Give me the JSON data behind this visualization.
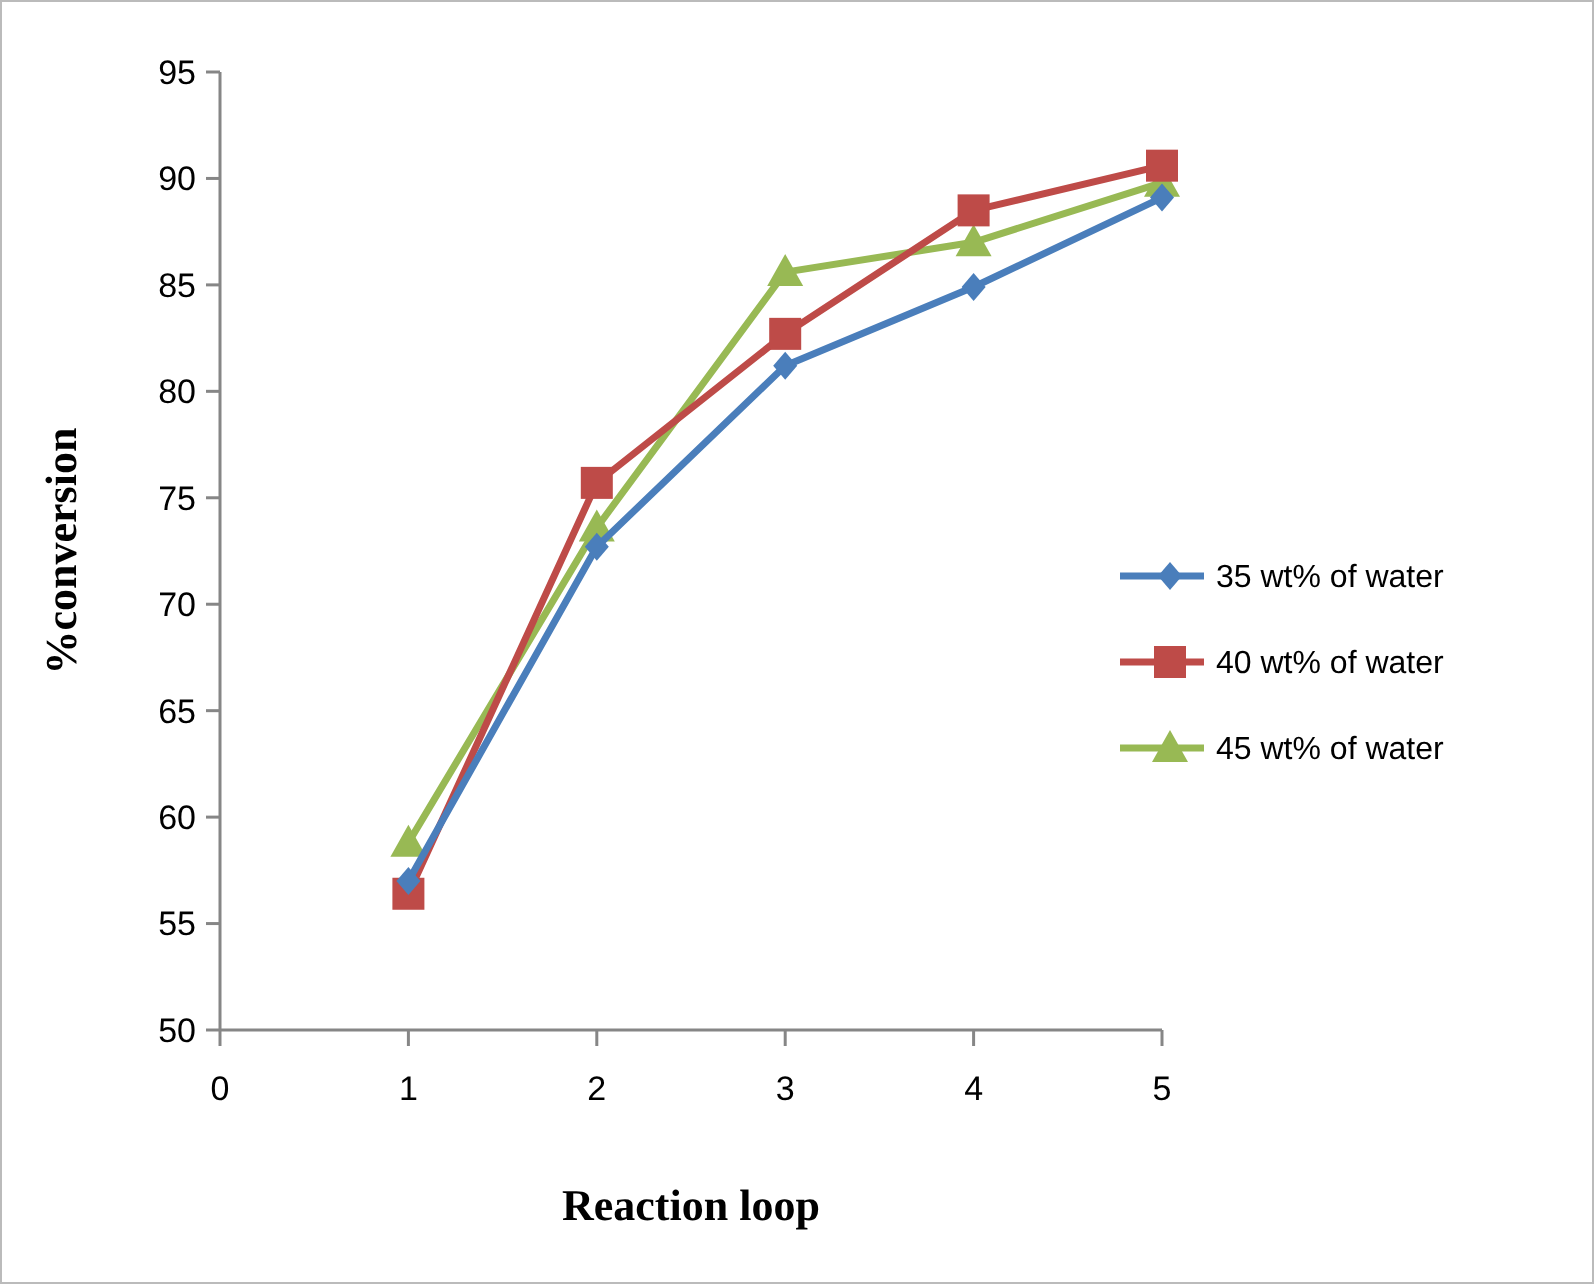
{
  "chart_data": {
    "type": "line",
    "xlabel": "Reaction loop",
    "ylabel": "%conversion",
    "x": [
      1,
      2,
      3,
      4,
      5
    ],
    "xlim": [
      0,
      5
    ],
    "xticks": [
      0,
      1,
      2,
      3,
      4,
      5
    ],
    "ylim": [
      50,
      95
    ],
    "yticks": [
      50,
      55,
      60,
      65,
      70,
      75,
      80,
      85,
      90,
      95
    ],
    "grid": false,
    "legend": "right",
    "series": [
      {
        "name": "35 wt% of water",
        "color": "#4a7ebb",
        "marker": "diamond",
        "values": [
          57,
          72.7,
          81.2,
          84.9,
          89.1
        ]
      },
      {
        "name": "40 wt% of water",
        "color": "#be4b48",
        "marker": "square",
        "values": [
          56.4,
          75.7,
          82.7,
          88.5,
          90.6
        ]
      },
      {
        "name": "45 wt% of water",
        "color": "#98b954",
        "marker": "triangle",
        "values": [
          58.8,
          73.6,
          85.6,
          87.0,
          89.8
        ]
      }
    ]
  }
}
